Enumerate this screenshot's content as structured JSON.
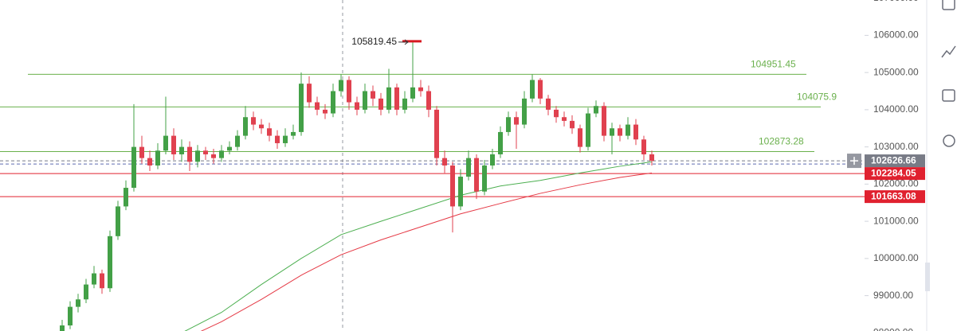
{
  "chart_data": {
    "type": "candlestick",
    "ylim": [
      98050,
      106950
    ],
    "yticks": [
      {
        "value": 98000,
        "label": "98000.00"
      },
      {
        "value": 99000,
        "label": "99000.00"
      },
      {
        "value": 100000,
        "label": "100000.00"
      },
      {
        "value": 101000,
        "label": "101000.00"
      },
      {
        "value": 102000,
        "label": "102000.00"
      },
      {
        "value": 103000,
        "label": "103000.00"
      },
      {
        "value": 104000,
        "label": "104000.00"
      },
      {
        "value": 105000,
        "label": "105000.00"
      },
      {
        "value": 106000,
        "label": "106000.00"
      },
      {
        "value": 107000,
        "label": "107000.00"
      }
    ],
    "up_color": "#43a047",
    "down_color": "#e0414f",
    "open": [
      97900,
      98200,
      98700,
      98900,
      99300,
      99600,
      99200,
      100600,
      101400,
      101900,
      103000,
      102700,
      102500,
      102900,
      103300,
      102800,
      103000,
      102600,
      102900,
      102800,
      102700,
      102900,
      103000,
      103300,
      103800,
      103600,
      103500,
      103300,
      103100,
      103300,
      103400,
      104700,
      104200,
      104000,
      103900,
      104500,
      104800,
      104200,
      104000,
      104500,
      104300,
      104000,
      104600,
      104000,
      104300,
      104600,
      104500,
      104000,
      102700,
      102500,
      101400,
      102200,
      102700,
      101800,
      102500,
      102800,
      103400,
      103800,
      103600,
      104300,
      104800,
      104300,
      104000,
      103800,
      103700,
      103500,
      103000,
      103900,
      104100,
      103300,
      103500,
      103300,
      103600,
      103200,
      102800
    ],
    "high": [
      98350,
      98850,
      99050,
      99450,
      99800,
      99700,
      100750,
      101550,
      102100,
      104150,
      103300,
      102900,
      103100,
      104350,
      103500,
      103200,
      103150,
      103050,
      103000,
      102950,
      103050,
      103150,
      103450,
      104100,
      103950,
      103750,
      103650,
      103450,
      103500,
      103600,
      105000,
      104900,
      104350,
      104150,
      104700,
      104950,
      104900,
      104350,
      104700,
      104650,
      104450,
      105100,
      104700,
      104500,
      105819.45,
      104800,
      104650,
      104100,
      102900,
      102600,
      102400,
      102900,
      102800,
      102650,
      102950,
      103550,
      103950,
      103950,
      104500,
      104950,
      104850,
      104400,
      104100,
      103950,
      103850,
      103600,
      104050,
      104250,
      104200,
      103650,
      103600,
      103800,
      103750,
      103300,
      102900
    ],
    "low": [
      97750,
      98100,
      98550,
      98800,
      99200,
      99050,
      99100,
      100500,
      101300,
      101800,
      102550,
      102350,
      102400,
      102800,
      102650,
      102600,
      102350,
      102450,
      102650,
      102550,
      102600,
      102800,
      102900,
      103200,
      103450,
      103350,
      103150,
      102950,
      103000,
      103200,
      103300,
      104050,
      103850,
      103750,
      103800,
      104350,
      104000,
      103850,
      103900,
      104100,
      103850,
      103900,
      103850,
      103900,
      104200,
      104350,
      103800,
      102500,
      102300,
      100700,
      101300,
      102100,
      101600,
      101700,
      102400,
      102700,
      103300,
      102950,
      103500,
      104200,
      104150,
      103850,
      103650,
      103550,
      103350,
      102850,
      102900,
      103800,
      103150,
      102800,
      103150,
      103200,
      103050,
      102650,
      102500
    ],
    "close": [
      98200,
      98700,
      98900,
      99300,
      99600,
      99200,
      100600,
      101400,
      101900,
      103000,
      102700,
      102500,
      102900,
      103300,
      102800,
      103000,
      102600,
      102900,
      102800,
      102700,
      102900,
      103000,
      103300,
      103800,
      103600,
      103500,
      103300,
      103100,
      103300,
      103400,
      104700,
      104200,
      104000,
      103900,
      104500,
      104800,
      104200,
      104000,
      104500,
      104300,
      104000,
      104600,
      104000,
      104300,
      104600,
      104500,
      104000,
      102700,
      102500,
      101400,
      102200,
      102700,
      101800,
      102500,
      102800,
      103400,
      103800,
      103600,
      104300,
      104800,
      104300,
      104000,
      103800,
      103700,
      103500,
      103000,
      103900,
      104100,
      103300,
      103500,
      103300,
      103600,
      103200,
      102800,
      102626.66
    ],
    "moving_averages": [
      {
        "color": "#4caf50",
        "x": [
          15,
          20,
          25,
          30,
          35,
          40,
          45,
          50,
          55,
          60,
          65,
          70,
          74
        ],
        "values": [
          98000,
          98550,
          99300,
          100000,
          100640,
          101000,
          101350,
          101700,
          101950,
          102100,
          102300,
          102480,
          102600
        ]
      },
      {
        "color": "#e53945",
        "x": [
          17,
          20,
          25,
          30,
          35,
          40,
          45,
          50,
          55,
          60,
          65,
          70,
          74
        ],
        "values": [
          98000,
          98300,
          98900,
          99550,
          100100,
          100500,
          100850,
          101200,
          101480,
          101750,
          101980,
          102180,
          102300
        ]
      }
    ],
    "levels": [
      {
        "value": 104951.45,
        "color": "#6ab04c",
        "label_position": "line"
      },
      {
        "value": 104075.9,
        "color": "#6ab04c",
        "label_position": "line"
      },
      {
        "value": 102873.28,
        "color": "#6ab04c",
        "label_position": "line"
      },
      {
        "value": 102626.66,
        "color": "#787b86",
        "label_position": "axis"
      },
      {
        "value": 102284.05,
        "color": "#e0212f",
        "label_position": "axis"
      },
      {
        "value": 101663.08,
        "color": "#e0212f",
        "label_position": "axis"
      }
    ]
  }
}
